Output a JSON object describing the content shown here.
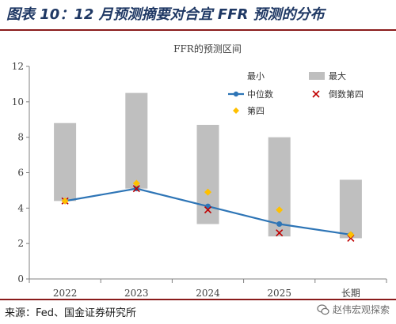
{
  "figure_title": "图表 10：12 月预测摘要对合宜 FFR 预测的分布",
  "source_note": "来源：Fed、国金证券研究所",
  "watermark": "赵伟宏观探索",
  "colors": {
    "title": "#1f3864",
    "rule": "#8a1b1b",
    "range_bar": "#bfbfbf",
    "median_line": "#2e75b6",
    "fourth_marker": "#ffc000",
    "fourth_from_top_marker": "#c00000"
  },
  "chart_data": {
    "type": "range-bar-with-line-and-scatter",
    "title": "FFR的预测区间",
    "categories": [
      "2022",
      "2023",
      "2024",
      "2025",
      "长期"
    ],
    "ylim": [
      0,
      12
    ],
    "yticks": [
      0,
      2,
      4,
      6,
      8,
      10,
      12
    ],
    "grid": false,
    "legend_position": "top-right",
    "legend_labels": {
      "min": "最小",
      "max": "最大",
      "median": "中位数",
      "fourth_from_top": "倒数第四",
      "fourth": "第四"
    },
    "series": [
      {
        "name": "最小",
        "values": [
          4.4,
          5.1,
          3.1,
          2.4,
          2.3
        ]
      },
      {
        "name": "最大",
        "values": [
          8.8,
          10.5,
          8.7,
          8.0,
          5.6
        ]
      },
      {
        "name": "中位数",
        "values": [
          4.4,
          5.1,
          4.1,
          3.1,
          2.5
        ]
      },
      {
        "name": "倒数第四",
        "values": [
          4.4,
          5.1,
          3.9,
          2.6,
          2.3
        ]
      },
      {
        "name": "第四",
        "values": [
          4.4,
          5.4,
          4.9,
          3.9,
          2.5
        ]
      }
    ]
  }
}
